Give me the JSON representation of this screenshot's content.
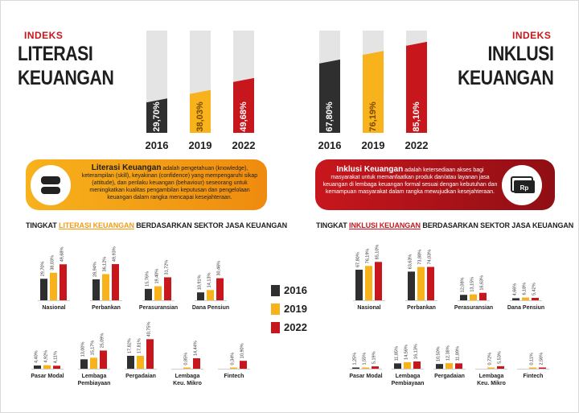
{
  "left": {
    "small_title": "INDEKS",
    "title_line1": "LITERASI",
    "title_line2": "KEUANGAN",
    "chip": {
      "title": "Literasi Keuangan",
      "body": "adalah pengetahuan (knowledge), keterampilan (skill), keyakinan (confidence) yang mempengaruhi sikap (attitude), dan perilaku keuangan (behaviour) seseorang untuk meningkatkan kualitas pengambilan keputusan dan pengelolaan keuangan dalam rangka mencapai kesejahteraan."
    },
    "section_title_pre": "TINGKAT",
    "section_title_hl": "LITERASI KEUANGAN",
    "section_title_post": "BERDASARKAN SEKTOR JASA KEUANGAN"
  },
  "right": {
    "small_title": "INDEKS",
    "title_line1": "INKLUSI",
    "title_line2": "KEUANGAN",
    "chip": {
      "title": "Inklusi Keuangan",
      "body": "adalah ketersediaan akses bagi masyarakat untuk memanfaatkan produk dan/atau layanan jasa keuangan di lembaga keuangan formal sesuai dengan kebutuhan dan kemampuan masyarakat dalam rangka mewujudkan kesejahteraan."
    },
    "section_title_pre": "TINGKAT",
    "section_title_hl": "INKLUSI KEUANGAN",
    "section_title_post": "BERDASARKAN SEKTOR JASA KEUANGAN",
    "icon_text": "Rp"
  },
  "legend": [
    "2016",
    "2019",
    "2022"
  ],
  "colors": {
    "2016": "#2f2f2f",
    "2019": "#f7b21c",
    "2022": "#c8161d",
    "left_chip": "#f39c12",
    "right_chip": "#b3141a",
    "track": "#e4e4e4"
  },
  "chart_data": [
    {
      "type": "bar",
      "title": "INDEKS LITERASI KEUANGAN",
      "categories": [
        "2016",
        "2019",
        "2022"
      ],
      "values": [
        29.7,
        38.03,
        49.68
      ],
      "labels": [
        "29,70%",
        "38,03%",
        "49,68%"
      ],
      "ylim": [
        0,
        100
      ]
    },
    {
      "type": "bar",
      "title": "INDEKS INKLUSI KEUANGAN",
      "categories": [
        "2016",
        "2019",
        "2022"
      ],
      "values": [
        67.8,
        76.19,
        85.1
      ],
      "labels": [
        "67,80%",
        "76,19%",
        "85,10%"
      ],
      "ylim": [
        0,
        100
      ]
    },
    {
      "type": "bar",
      "title": "TINGKAT LITERASI KEUANGAN BERDASARKAN SEKTOR JASA KEUANGAN",
      "series_years": [
        "2016",
        "2019",
        "2022"
      ],
      "groups": [
        {
          "name": "Nasional",
          "values": [
            29.7,
            38.03,
            49.68
          ],
          "labels": [
            "29,70%",
            "38,03%",
            "49,68%"
          ]
        },
        {
          "name": "Perbankan",
          "values": [
            28.94,
            36.12,
            49.93
          ],
          "labels": [
            "28,94%",
            "36,12%",
            "49,93%"
          ]
        },
        {
          "name": "Perasuransian",
          "values": [
            15.76,
            19.4,
            31.72
          ],
          "labels": [
            "15,76%",
            "19,40%",
            "31,72%"
          ]
        },
        {
          "name": "Dana Pensiun",
          "values": [
            10.91,
            14.13,
            30.46
          ],
          "labels": [
            "10,91%",
            "14,13%",
            "30,46%"
          ]
        },
        {
          "name": "Pasar Modal",
          "values": [
            4.4,
            4.92,
            4.11
          ],
          "labels": [
            "4,40%",
            "4,92%",
            "4,11%"
          ]
        },
        {
          "name": "Lembaga Pembiayaan",
          "values": [
            13.0,
            15.17,
            25.09
          ],
          "labels": [
            "13,00%",
            "15,17%",
            "25,09%"
          ]
        },
        {
          "name": "Pergadaian",
          "values": [
            17.82,
            17.81,
            40.75
          ],
          "labels": [
            "17,82%",
            "17,81%",
            "40,75%"
          ]
        },
        {
          "name": "Lembaga Keu. Mikro",
          "values": [
            null,
            0.85,
            14.44
          ],
          "labels": [
            "",
            "0,85%",
            "14,44%"
          ]
        },
        {
          "name": "Fintech",
          "values": [
            null,
            0.34,
            10.9
          ],
          "labels": [
            "",
            "0,34%",
            "10,90%"
          ]
        }
      ]
    },
    {
      "type": "bar",
      "title": "TINGKAT INKLUSI KEUANGAN BERDASARKAN SEKTOR JASA KEUANGAN",
      "series_years": [
        "2016",
        "2019",
        "2022"
      ],
      "groups": [
        {
          "name": "Nasional",
          "values": [
            67.8,
            76.19,
            85.1
          ],
          "labels": [
            "67,80%",
            "76,19%",
            "85,10%"
          ]
        },
        {
          "name": "Perbankan",
          "values": [
            63.63,
            73.88,
            74.03
          ],
          "labels": [
            "63,63%",
            "73,88%",
            "74,03%"
          ]
        },
        {
          "name": "Perasuransian",
          "values": [
            12.08,
            13.15,
            16.63
          ],
          "labels": [
            "12,08%",
            "13,15%",
            "16,63%"
          ]
        },
        {
          "name": "Dana Pensiun",
          "values": [
            4.66,
            6.18,
            5.42
          ],
          "labels": [
            "4,66%",
            "6,18%",
            "5,42%"
          ]
        },
        {
          "name": "Pasar Modal",
          "values": [
            1.25,
            1.55,
            5.19
          ],
          "labels": [
            "1,25%",
            "1,55%",
            "5,19%"
          ]
        },
        {
          "name": "Lembaga Pembiayaan",
          "values": [
            11.85,
            14.56,
            16.13
          ],
          "labels": [
            "11,85%",
            "14,56%",
            "16,13%"
          ]
        },
        {
          "name": "Pergadaian",
          "values": [
            10.5,
            12.38,
            11.89
          ],
          "labels": [
            "10,50%",
            "12,38%",
            "11,89%"
          ]
        },
        {
          "name": "Lembaga Keu. Mikro",
          "values": [
            null,
            0.72,
            5.53
          ],
          "labels": [
            "",
            "0,72%",
            "5,53%"
          ]
        },
        {
          "name": "Fintech",
          "values": [
            null,
            0.11,
            2.56
          ],
          "labels": [
            "",
            "0,11%",
            "2,56%"
          ]
        }
      ]
    }
  ]
}
